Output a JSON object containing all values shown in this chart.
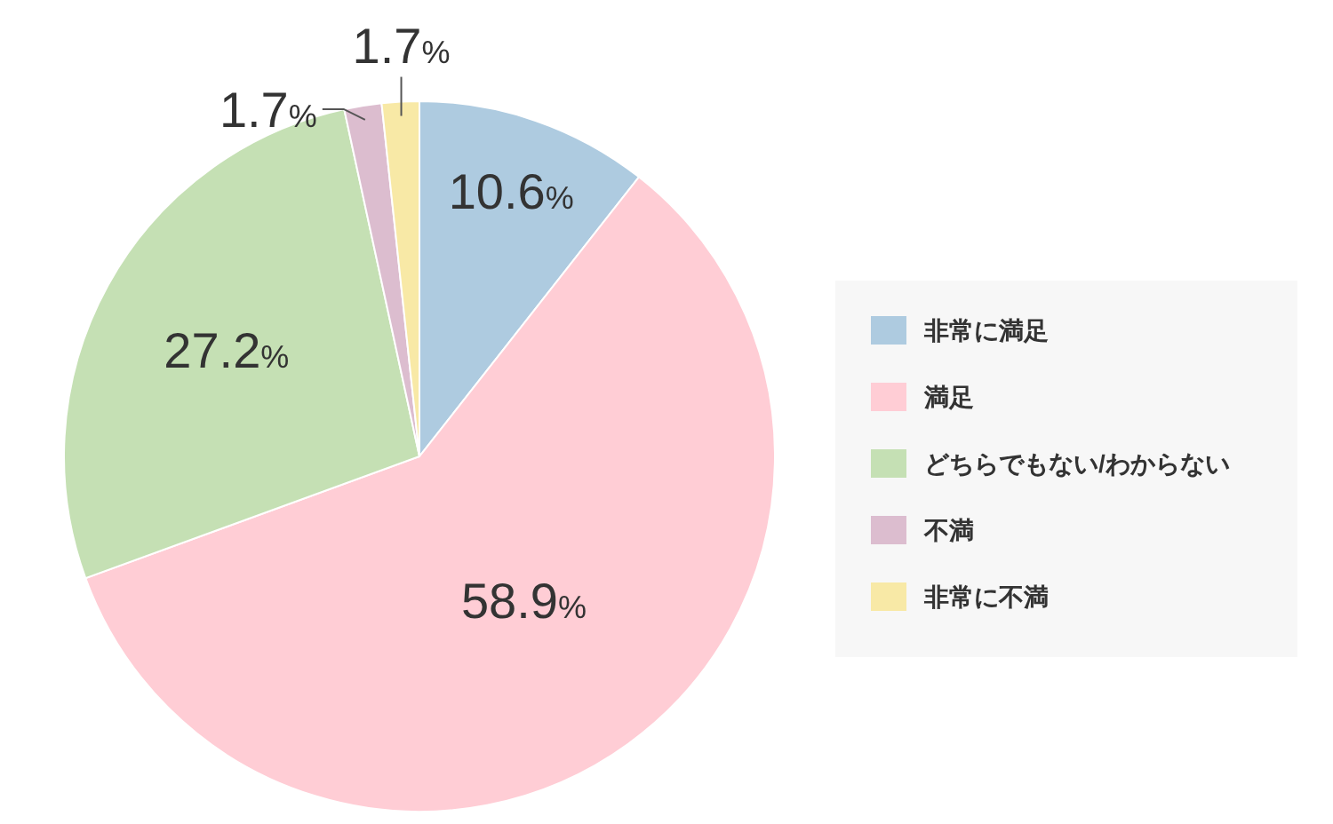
{
  "chart_data": {
    "type": "pie",
    "categories": [
      "非常に満足",
      "満足",
      "どちらでもない/わからない",
      "不満",
      "非常に不満"
    ],
    "values": [
      10.6,
      58.9,
      27.2,
      1.7,
      1.7
    ],
    "colors": [
      "#aecbe0",
      "#ffcdd5",
      "#c5e0b4",
      "#dcbdcf",
      "#f8e9a6"
    ],
    "value_labels": [
      "10.6%",
      "58.9%",
      "27.2%",
      "1.7%",
      "1.7%"
    ],
    "legend": "right"
  }
}
